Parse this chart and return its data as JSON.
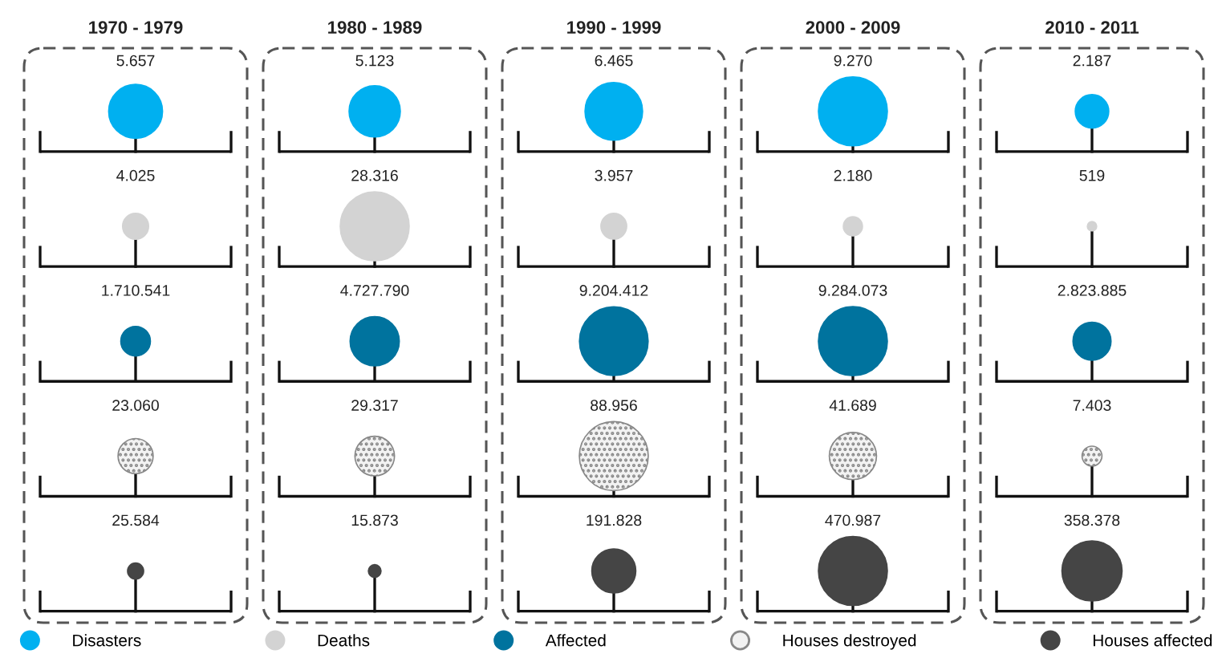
{
  "chart_data": {
    "type": "other",
    "categories": [
      "1970 - 1979",
      "1980 - 1989",
      "1990 - 1999",
      "2000 - 2009",
      "2010 - 2011"
    ],
    "series": [
      {
        "name": "Disasters",
        "color": "#00b0f0",
        "values": [
          5657,
          5123,
          6465,
          9270,
          2187
        ],
        "value_labels": [
          "5.657",
          "5.123",
          "6.465",
          "9.270",
          "2.187"
        ]
      },
      {
        "name": "Deaths",
        "color": "#d3d3d3",
        "values": [
          4025,
          28316,
          3957,
          2180,
          519
        ],
        "value_labels": [
          "4.025",
          "28.316",
          "3.957",
          "2.180",
          "519"
        ]
      },
      {
        "name": "Affected",
        "color": "#00739e",
        "values": [
          1710541,
          4727790,
          9204412,
          9284073,
          2823885
        ],
        "value_labels": [
          "1.710.541",
          "4.727.790",
          "9.204.412",
          "9.284.073",
          "2.823.885"
        ]
      },
      {
        "name": "Houses destroyed",
        "color": "#f2f2f2",
        "values": [
          23060,
          29317,
          88956,
          41689,
          7403
        ],
        "value_labels": [
          "23.060",
          "29.317",
          "88.956",
          "41.689",
          "7.403"
        ]
      },
      {
        "name": "Houses affected",
        "color": "#454545",
        "values": [
          25584,
          15873,
          191828,
          470987,
          358378
        ],
        "value_labels": [
          "25.584",
          "15.873",
          "191.828",
          "470.987",
          "358.378"
        ]
      }
    ],
    "legend": "bottom"
  }
}
